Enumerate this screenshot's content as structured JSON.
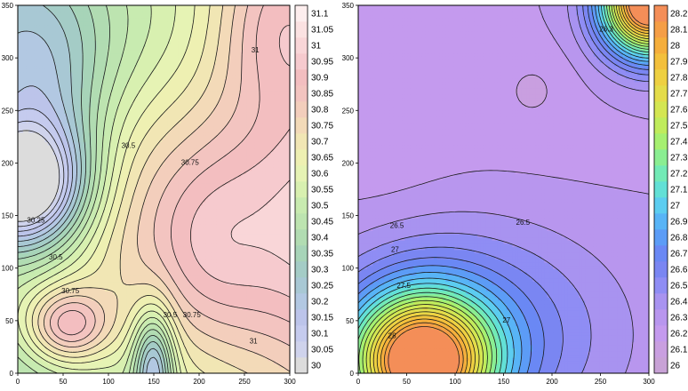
{
  "chart_data": [
    {
      "type": "heatmap",
      "subtype": "filled-contour",
      "title": "",
      "xlabel": "",
      "ylabel": "",
      "xlim": [
        0,
        300
      ],
      "ylim": [
        0,
        350
      ],
      "x_ticks": [
        "0",
        "50",
        "100",
        "150",
        "200",
        "250",
        "300"
      ],
      "y_ticks": [
        "0",
        "50",
        "100",
        "150",
        "200",
        "250",
        "300",
        "350"
      ],
      "contour_interval": 0.05,
      "colorbar": {
        "placement": "right",
        "levels": [
          "30",
          "30.05",
          "30.1",
          "30.15",
          "30.2",
          "30.25",
          "30.3",
          "30.35",
          "30.4",
          "30.45",
          "30.5",
          "30.55",
          "30.6",
          "30.65",
          "30.7",
          "30.75",
          "30.8",
          "30.85",
          "30.9",
          "30.95",
          "31",
          "31.05",
          "31.1"
        ],
        "colors": [
          "#dcdcdc",
          "#cfd3ec",
          "#c5cbee",
          "#bcc4ea",
          "#b2c8e2",
          "#a8c8d4",
          "#a4ccc6",
          "#a7d4b8",
          "#b1dcb2",
          "#bde4b0",
          "#c8ebb0",
          "#d8f0b0",
          "#e6f3b4",
          "#eef0b2",
          "#f1e6b4",
          "#f3dab8",
          "#f3cebc",
          "#f3c4c0",
          "#f3bec0",
          "#f6cace",
          "#f9d6d8",
          "#fbe2e2",
          "#fdeeee"
        ]
      },
      "contour_labels": [
        {
          "text": "31",
          "x": 262,
          "y": 307
        },
        {
          "text": "30.5",
          "x": 122,
          "y": 216
        },
        {
          "text": "30.75",
          "x": 190,
          "y": 200
        },
        {
          "text": "30.25",
          "x": 20,
          "y": 145
        },
        {
          "text": "30.5",
          "x": 42,
          "y": 110
        },
        {
          "text": "30.75",
          "x": 58,
          "y": 78
        },
        {
          "text": "30.5",
          "x": 168,
          "y": 55
        },
        {
          "text": "30.75",
          "x": 192,
          "y": 55
        },
        {
          "text": "31",
          "x": 260,
          "y": 30
        }
      ]
    },
    {
      "type": "heatmap",
      "subtype": "filled-contour",
      "title": "",
      "xlabel": "",
      "ylabel": "",
      "xlim": [
        0,
        300
      ],
      "ylim": [
        0,
        350
      ],
      "x_ticks": [
        "0",
        "50",
        "100",
        "150",
        "200",
        "250",
        "300"
      ],
      "y_ticks": [
        "0",
        "50",
        "100",
        "150",
        "200",
        "250",
        "300",
        "350"
      ],
      "contour_interval": 0.1,
      "colorbar": {
        "placement": "right",
        "levels": [
          "26",
          "26.1",
          "26.2",
          "26.3",
          "26.4",
          "26.5",
          "26.6",
          "26.7",
          "26.8",
          "26.9",
          "27",
          "27.1",
          "27.2",
          "27.3",
          "27.4",
          "27.5",
          "27.6",
          "27.7",
          "27.8",
          "27.9",
          "28",
          "28.1",
          "28.2"
        ],
        "colors": [
          "#c8a2d6",
          "#c99fe0",
          "#c49aee",
          "#b896ee",
          "#a893f0",
          "#8f8df4",
          "#7a86f2",
          "#6a88f4",
          "#5c9cf6",
          "#58b4f6",
          "#5ccdf0",
          "#62e0d6",
          "#72eab6",
          "#8aee92",
          "#a6f070",
          "#c0ec5c",
          "#d4e652",
          "#e4dc4a",
          "#eed042",
          "#f3c03c",
          "#f5ae3c",
          "#f59e46",
          "#f48e58"
        ]
      },
      "contour_labels": [
        {
          "text": "26.3",
          "x": 256,
          "y": 327
        },
        {
          "text": "26.5",
          "x": 40,
          "y": 140
        },
        {
          "text": "26.5",
          "x": 170,
          "y": 143
        },
        {
          "text": "27",
          "x": 38,
          "y": 117
        },
        {
          "text": "27",
          "x": 153,
          "y": 50
        },
        {
          "text": "27.5",
          "x": 47,
          "y": 83
        },
        {
          "text": "28",
          "x": 35,
          "y": 35
        }
      ]
    }
  ]
}
